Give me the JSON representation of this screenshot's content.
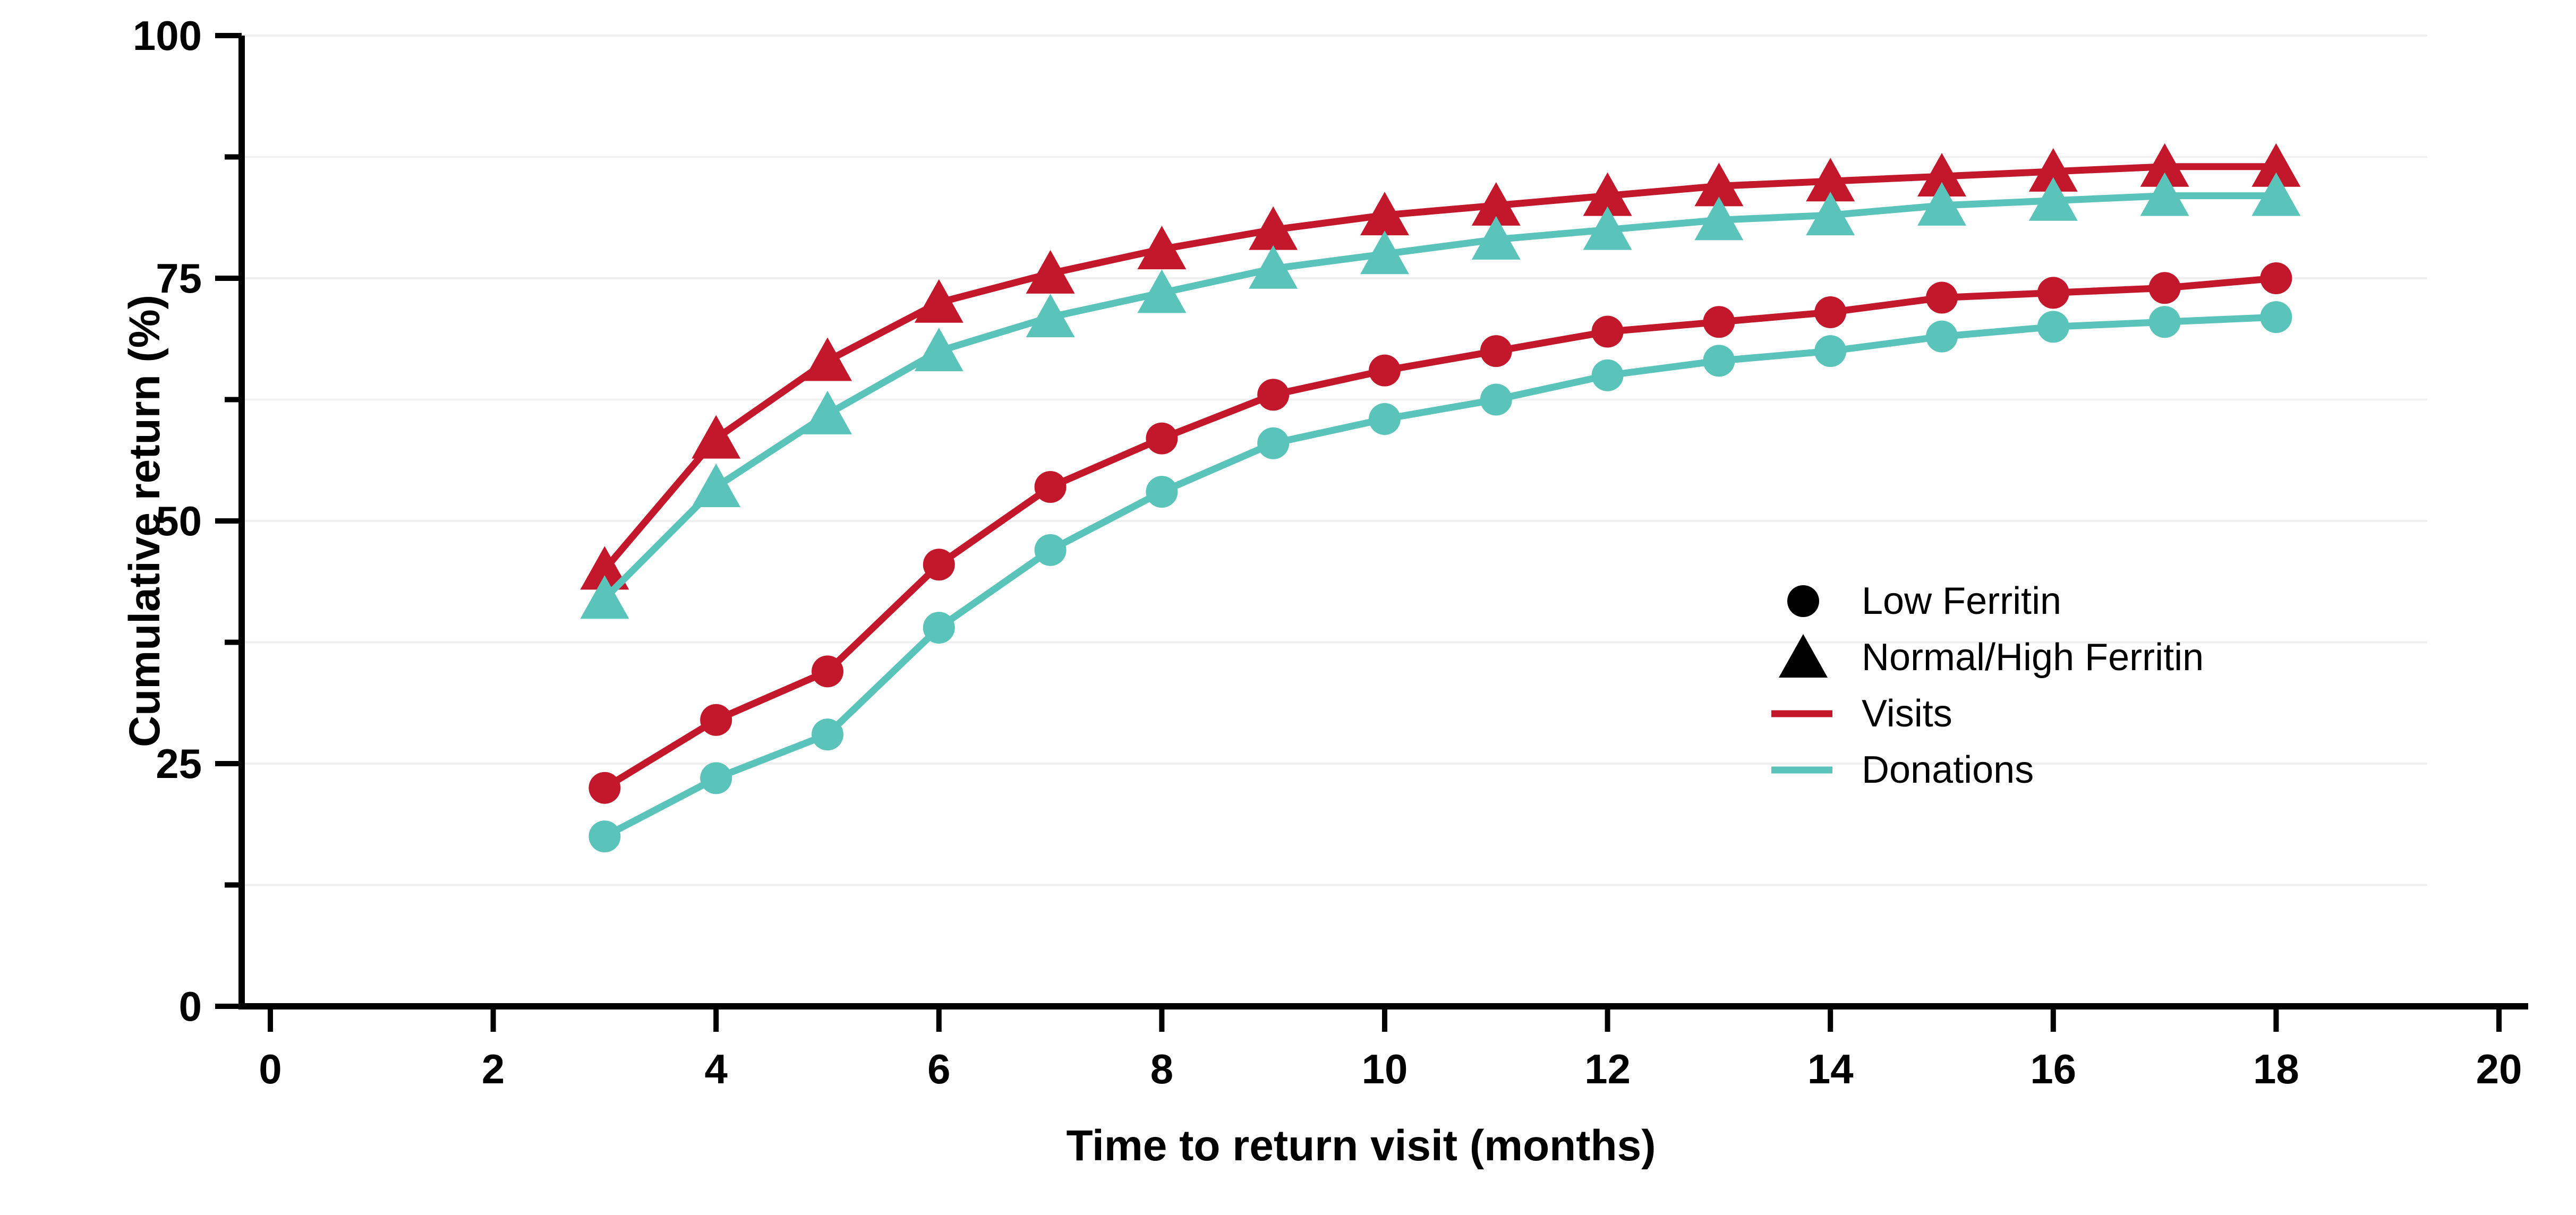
{
  "chart_data": {
    "type": "line",
    "title": "",
    "xlabel": "Time to return visit (months)",
    "ylabel": "Cumulative return (%)",
    "xlim": [
      0,
      20
    ],
    "ylim": [
      0,
      100
    ],
    "x_tick_labels": [
      "0",
      "2",
      "4",
      "6",
      "8",
      "10",
      "12",
      "14",
      "16",
      "18",
      "20"
    ],
    "x_tick_values": [
      0,
      2,
      4,
      6,
      8,
      10,
      12,
      14,
      16,
      18,
      20
    ],
    "y_tick_labels": [
      "0",
      "25",
      "50",
      "75",
      "100"
    ],
    "y_tick_values": [
      0,
      25,
      50,
      75,
      100
    ],
    "y_minor_tick_values": [
      12.5,
      37.5,
      62.5,
      87.5
    ],
    "gridline_values": [
      12.5,
      25,
      37.5,
      50,
      62.5,
      75,
      87.5,
      100
    ],
    "grid_on": true,
    "x": [
      3,
      4,
      5,
      6,
      7,
      8,
      9,
      10,
      11,
      12,
      13,
      14,
      15,
      16,
      17,
      18
    ],
    "series": [
      {
        "name": "Visits - Normal/High Ferritin",
        "group": "Visits",
        "ferritin": "Normal/High",
        "color": "#C3182B",
        "marker": "triangle",
        "values": [
          45,
          58.5,
          66.5,
          72.5,
          75.5,
          78,
          80,
          81.5,
          82.5,
          83.5,
          84.5,
          85,
          85.5,
          86,
          86.5,
          86.5
        ]
      },
      {
        "name": "Donations - Normal/High Ferritin",
        "group": "Donations",
        "ferritin": "Normal/High",
        "color": "#5BC4BA",
        "marker": "triangle",
        "values": [
          42,
          53.5,
          61,
          67.5,
          71,
          73.5,
          76,
          77.5,
          79,
          80,
          81,
          81.5,
          82.5,
          83,
          83.5,
          83.5
        ]
      },
      {
        "name": "Visits - Low Ferritin",
        "group": "Visits",
        "ferritin": "Low",
        "color": "#C3182B",
        "marker": "circle",
        "values": [
          22.5,
          29.5,
          34.5,
          45.5,
          53.5,
          58.5,
          63,
          65.5,
          67.5,
          69.5,
          70.5,
          71.5,
          73,
          73.5,
          74,
          75
        ]
      },
      {
        "name": "Donations - Low Ferritin",
        "group": "Donations",
        "ferritin": "Low",
        "color": "#5BC4BA",
        "marker": "circle",
        "values": [
          17.5,
          23.5,
          28,
          39,
          47,
          53,
          58,
          60.5,
          62.5,
          65,
          66.5,
          67.5,
          69,
          70,
          70.5,
          71
        ]
      }
    ],
    "legend": {
      "position": "middle-right",
      "items": [
        {
          "swatch": "circle",
          "color": "#000000",
          "label": "Low Ferritin"
        },
        {
          "swatch": "triangle",
          "color": "#000000",
          "label": "Normal/High Ferritin"
        },
        {
          "swatch": "line",
          "color": "#C3182B",
          "label": "Visits"
        },
        {
          "swatch": "line",
          "color": "#5BC4BA",
          "label": "Donations"
        }
      ]
    },
    "colors": {
      "visits": "#C3182B",
      "donations": "#5BC4BA",
      "grid": "#EFEFEF",
      "axis": "#000000",
      "background": "#FFFFFF"
    }
  }
}
